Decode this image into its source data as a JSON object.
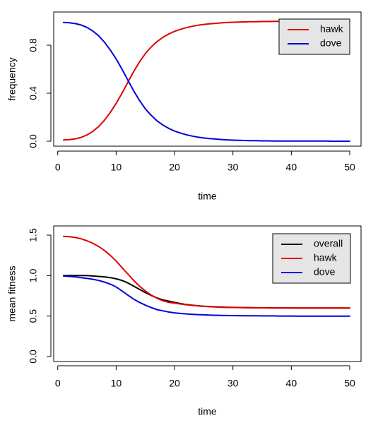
{
  "chart_data": [
    {
      "type": "line",
      "xlabel": "time",
      "ylabel": "frequency",
      "xlim": [
        1,
        50
      ],
      "ylim": [
        0,
        1
      ],
      "x_ticks": [
        0,
        10,
        20,
        30,
        40,
        50
      ],
      "y_ticks": [
        0.0,
        0.4,
        0.8
      ],
      "y_tick_labels": [
        "0.0",
        "0.4",
        "0.8"
      ],
      "legend_position": "top-right",
      "x": [
        1,
        2,
        3,
        4,
        5,
        6,
        7,
        8,
        9,
        10,
        11,
        12,
        13,
        14,
        15,
        16,
        17,
        18,
        19,
        20,
        21,
        22,
        23,
        24,
        25,
        26,
        27,
        28,
        29,
        30,
        31,
        32,
        33,
        34,
        35,
        36,
        37,
        38,
        39,
        40,
        41,
        42,
        43,
        44,
        45,
        46,
        47,
        48,
        49,
        50
      ],
      "series": [
        {
          "name": "hawk",
          "color": "#e00000",
          "values": [
            0.01,
            0.013,
            0.02,
            0.032,
            0.052,
            0.082,
            0.122,
            0.175,
            0.24,
            0.315,
            0.4,
            0.49,
            0.58,
            0.66,
            0.73,
            0.785,
            0.83,
            0.865,
            0.893,
            0.915,
            0.932,
            0.946,
            0.957,
            0.966,
            0.973,
            0.978,
            0.982,
            0.986,
            0.989,
            0.991,
            0.993,
            0.994,
            0.995,
            0.996,
            0.997,
            0.997,
            0.998,
            0.998,
            0.998,
            0.999,
            0.999,
            0.999,
            0.999,
            0.999,
            0.999,
            0.999,
            1.0,
            1.0,
            1.0,
            1.0
          ]
        },
        {
          "name": "dove",
          "color": "#0000dd",
          "values": [
            0.99,
            0.987,
            0.98,
            0.968,
            0.948,
            0.918,
            0.878,
            0.825,
            0.76,
            0.685,
            0.6,
            0.51,
            0.42,
            0.34,
            0.27,
            0.215,
            0.17,
            0.135,
            0.107,
            0.085,
            0.068,
            0.054,
            0.043,
            0.034,
            0.027,
            0.022,
            0.018,
            0.014,
            0.011,
            0.009,
            0.007,
            0.006,
            0.005,
            0.004,
            0.003,
            0.003,
            0.002,
            0.002,
            0.002,
            0.001,
            0.001,
            0.001,
            0.001,
            0.001,
            0.001,
            0.001,
            0.0,
            0.0,
            0.0,
            0.0
          ]
        }
      ]
    },
    {
      "type": "line",
      "xlabel": "time",
      "ylabel": "mean fitness",
      "xlim": [
        1,
        50
      ],
      "ylim": [
        0,
        1.5
      ],
      "x_ticks": [
        0,
        10,
        20,
        30,
        40,
        50
      ],
      "y_ticks": [
        0.0,
        0.5,
        1.0,
        1.5
      ],
      "y_tick_labels": [
        "0.0",
        "0.5",
        "1.0",
        "1.5"
      ],
      "legend_position": "top-right",
      "x": [
        1,
        2,
        3,
        4,
        5,
        6,
        7,
        8,
        9,
        10,
        11,
        12,
        13,
        14,
        15,
        16,
        17,
        18,
        19,
        20,
        21,
        22,
        23,
        24,
        25,
        26,
        27,
        28,
        29,
        30,
        31,
        32,
        33,
        34,
        35,
        36,
        37,
        38,
        39,
        40,
        41,
        42,
        43,
        44,
        45,
        46,
        47,
        48,
        49,
        50
      ],
      "series": [
        {
          "name": "overall",
          "color": "#000000",
          "values": [
            1.0,
            1.0,
            1.0,
            1.0,
            1.0,
            0.995,
            0.99,
            0.985,
            0.975,
            0.96,
            0.94,
            0.91,
            0.87,
            0.83,
            0.79,
            0.755,
            0.725,
            0.7,
            0.685,
            0.67,
            0.655,
            0.643,
            0.635,
            0.628,
            0.622,
            0.618,
            0.614,
            0.611,
            0.609,
            0.607,
            0.606,
            0.605,
            0.604,
            0.603,
            0.602,
            0.602,
            0.601,
            0.601,
            0.601,
            0.601,
            0.6,
            0.6,
            0.6,
            0.6,
            0.6,
            0.6,
            0.6,
            0.6,
            0.6,
            0.6
          ]
        },
        {
          "name": "hawk",
          "color": "#e00000",
          "values": [
            1.485,
            1.48,
            1.47,
            1.455,
            1.43,
            1.4,
            1.36,
            1.31,
            1.25,
            1.18,
            1.1,
            1.02,
            0.94,
            0.87,
            0.81,
            0.76,
            0.72,
            0.69,
            0.67,
            0.66,
            0.65,
            0.64,
            0.632,
            0.626,
            0.62,
            0.616,
            0.612,
            0.609,
            0.607,
            0.606,
            0.605,
            0.604,
            0.603,
            0.602,
            0.602,
            0.601,
            0.601,
            0.601,
            0.6,
            0.6,
            0.6,
            0.6,
            0.6,
            0.6,
            0.6,
            0.6,
            0.6,
            0.6,
            0.6,
            0.6
          ]
        },
        {
          "name": "dove",
          "color": "#0000dd",
          "values": [
            0.995,
            0.99,
            0.985,
            0.975,
            0.965,
            0.955,
            0.94,
            0.92,
            0.895,
            0.86,
            0.81,
            0.76,
            0.71,
            0.67,
            0.635,
            0.605,
            0.58,
            0.565,
            0.55,
            0.54,
            0.533,
            0.527,
            0.522,
            0.518,
            0.515,
            0.512,
            0.51,
            0.508,
            0.507,
            0.506,
            0.505,
            0.504,
            0.503,
            0.503,
            0.502,
            0.502,
            0.502,
            0.501,
            0.501,
            0.501,
            0.5,
            0.5,
            0.5,
            0.5,
            0.5,
            0.5,
            0.5,
            0.5,
            0.5,
            0.5
          ]
        }
      ]
    }
  ]
}
